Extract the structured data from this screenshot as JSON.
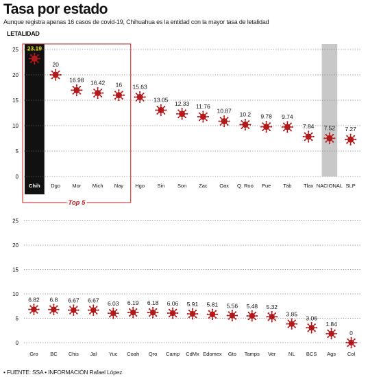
{
  "header": {
    "title": "Tasa por estado",
    "subtitle": "Aunque registra apenas 16 casos de covid-19, Chihuahua es la entidad con la mayor tasa de letalidad",
    "ylabel": "LETALIDAD"
  },
  "footer": {
    "source": "• FUENTE: SSA • INFORMACIÓN Rafael López"
  },
  "colors": {
    "marker": "#b3181a",
    "highlight_bg": "#111111",
    "highlight_label": "#f2e600",
    "national_bg": "#c8c8c8",
    "top5_box": "#c41a1a",
    "grid": "#777777"
  },
  "chart_data": [
    {
      "type": "scatter",
      "categories": [
        "Chih",
        "Dgo",
        "Mor",
        "Mich",
        "Nay",
        "Hgo",
        "Sin",
        "Son",
        "Zac",
        "Oax",
        "Q. Roo",
        "Pue",
        "Tab",
        "Tlax",
        "NACIONAL",
        "SLP"
      ],
      "values": [
        23.19,
        20,
        16.98,
        16.42,
        16,
        15.63,
        13.05,
        12.33,
        11.76,
        10.87,
        10.2,
        9.78,
        9.74,
        7.84,
        7.52,
        7.27
      ],
      "value_labels": [
        "23.19",
        "20",
        "16.98",
        "16.42",
        "16",
        "15.63",
        "13.05",
        "12.33",
        "11.76",
        "10.87",
        "10.2",
        "9.78",
        "9.74",
        "7.84",
        "7.52",
        "7.27"
      ],
      "yticks": [
        "0",
        "5",
        "10",
        "15",
        "20",
        "25"
      ],
      "ylim": [
        0,
        25
      ],
      "highlight_category": "Chih",
      "national_category": "NACIONAL",
      "top5_label": "Top 5",
      "top5_categories": [
        "Chih",
        "Dgo",
        "Mor",
        "Mich",
        "Nay"
      ],
      "grid": true
    },
    {
      "type": "scatter",
      "categories": [
        "Gro",
        "BC",
        "Chis",
        "Jal",
        "Yuc",
        "Coah",
        "Qro",
        "Camp",
        "CdMx",
        "Edomex",
        "Gto",
        "Tamps",
        "Ver",
        "NL",
        "BCS",
        "Ags",
        "Col"
      ],
      "values": [
        6.82,
        6.8,
        6.67,
        6.67,
        6.03,
        6.19,
        6.18,
        6.06,
        5.91,
        5.81,
        5.56,
        5.48,
        5.32,
        3.85,
        3.06,
        1.84,
        0
      ],
      "value_labels": [
        "6.82",
        "6.8",
        "6.67",
        "6.67",
        "6.03",
        "6.19",
        "6.18",
        "6.06",
        "5.91",
        "5.81",
        "5.56",
        "5.48",
        "5.32",
        "3.85",
        "3.06",
        "1.84",
        "0"
      ],
      "yticks": [
        "0",
        "5",
        "10",
        "15",
        "20",
        "25"
      ],
      "ylim": [
        0,
        25
      ],
      "grid": true
    }
  ]
}
